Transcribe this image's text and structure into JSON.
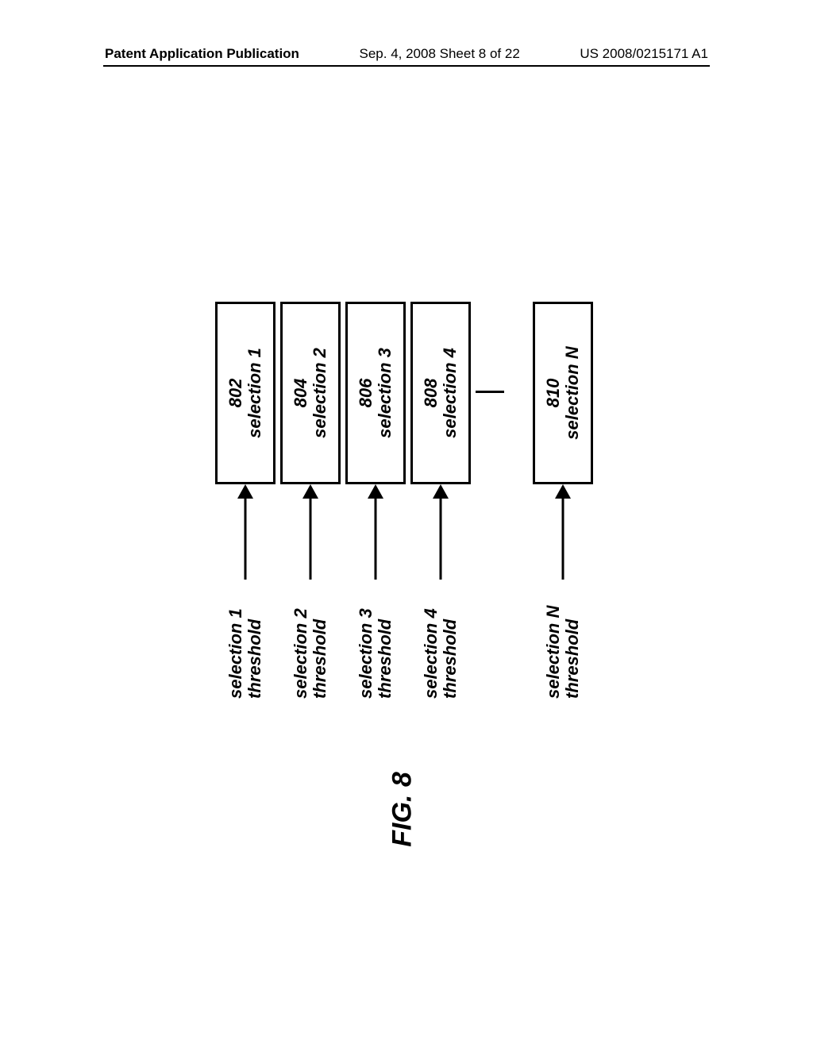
{
  "header": {
    "left": "Patent Application Publication",
    "mid": "Sep. 4, 2008  Sheet 8 of 22",
    "right": "US 2008/0215171 A1"
  },
  "figure": {
    "label": "FIG. 8",
    "rows": [
      {
        "threshold_line1": "selection 1",
        "threshold_line2": "threshold",
        "box_id": "802",
        "box_label": "selection 1"
      },
      {
        "threshold_line1": "selection 2",
        "threshold_line2": "threshold",
        "box_id": "804",
        "box_label": "selection 2"
      },
      {
        "threshold_line1": "selection 3",
        "threshold_line2": "threshold",
        "box_id": "806",
        "box_label": "selection 3"
      },
      {
        "threshold_line1": "selection 4",
        "threshold_line2": "threshold",
        "box_id": "808",
        "box_label": "selection 4"
      },
      {
        "threshold_line1": "selection N",
        "threshold_line2": "threshold",
        "box_id": "810",
        "box_label": "selection N"
      }
    ]
  },
  "style": {
    "box_border": "#000000",
    "box_border_width": 3,
    "arrow_color": "#000000",
    "font_family": "Arial",
    "threshold_fontsize": 22,
    "box_fontsize": 22,
    "figlabel_fontsize": 34,
    "background": "#ffffff"
  }
}
